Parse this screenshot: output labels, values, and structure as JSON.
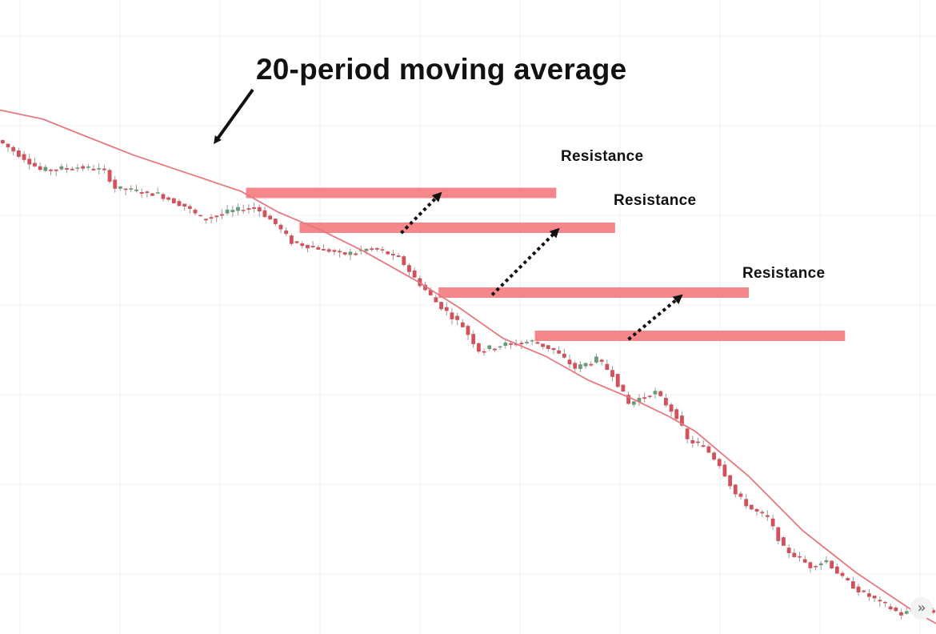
{
  "chart_data": {
    "type": "candlestick",
    "title": "",
    "xlabel": "",
    "ylabel": "",
    "ylim": [
      0,
      100
    ],
    "grid": true,
    "x_count": 175,
    "moving_average": {
      "name": "20-period moving average",
      "color": "#e8787f",
      "points": [
        [
          0,
          87
        ],
        [
          8,
          85.5
        ],
        [
          15,
          83
        ],
        [
          25,
          79.5
        ],
        [
          35,
          76.5
        ],
        [
          45,
          73.5
        ],
        [
          52,
          70
        ],
        [
          60,
          67
        ],
        [
          68,
          63.5
        ],
        [
          78,
          58.5
        ],
        [
          86,
          54
        ],
        [
          94,
          49
        ],
        [
          102,
          46
        ],
        [
          110,
          42
        ],
        [
          118,
          39
        ],
        [
          125,
          36
        ],
        [
          130,
          33.5
        ],
        [
          140,
          26
        ],
        [
          150,
          17
        ],
        [
          160,
          10
        ],
        [
          170,
          4
        ],
        [
          175,
          1.5
        ]
      ]
    },
    "candle_path": [
      [
        0,
        82
      ],
      [
        5,
        79
      ],
      [
        8,
        77
      ],
      [
        15,
        77.5
      ],
      [
        20,
        77
      ],
      [
        22,
        74
      ],
      [
        30,
        73
      ],
      [
        35,
        71
      ],
      [
        38,
        69
      ],
      [
        43,
        70
      ],
      [
        48,
        71
      ],
      [
        52,
        68
      ],
      [
        55,
        65
      ],
      [
        60,
        64
      ],
      [
        65,
        63
      ],
      [
        70,
        64
      ],
      [
        75,
        62.5
      ],
      [
        78,
        59
      ],
      [
        82,
        55
      ],
      [
        87,
        51
      ],
      [
        90,
        47
      ],
      [
        95,
        48
      ],
      [
        100,
        48.5
      ],
      [
        104,
        47
      ],
      [
        108,
        44
      ],
      [
        112,
        45.5
      ],
      [
        115,
        43
      ],
      [
        118,
        38
      ],
      [
        120,
        39
      ],
      [
        123,
        40
      ],
      [
        127,
        36
      ],
      [
        129,
        32
      ],
      [
        132,
        31
      ],
      [
        135,
        28
      ],
      [
        138,
        23
      ],
      [
        141,
        20.5
      ],
      [
        144,
        19
      ],
      [
        147,
        14
      ],
      [
        152,
        11
      ],
      [
        155,
        12
      ],
      [
        158,
        9
      ],
      [
        161,
        7
      ],
      [
        165,
        5
      ],
      [
        169,
        3
      ],
      [
        172,
        4
      ],
      [
        175,
        3.5
      ]
    ],
    "bull_color": "#6a9a77",
    "bear_color": "#d4515c",
    "resistance_color": "#f47c80",
    "resistance_levels": [
      {
        "label": "Resistance",
        "x_start": 46,
        "x_end": 104,
        "y": 73.2
      },
      {
        "label": "Resistance",
        "x_start": 56,
        "x_end": 115,
        "y": 67.4
      },
      {
        "label": "Resistance",
        "x_start": 82,
        "x_end": 140,
        "y": 56.6
      },
      {
        "label": "",
        "x_start": 100,
        "x_end": 158,
        "y": 49.4
      }
    ],
    "breakout_arrows": [
      {
        "x0": 75,
        "y0": 66.5,
        "x1": 82,
        "y1": 72.8
      },
      {
        "x0": 92,
        "y0": 56.2,
        "x1": 104,
        "y1": 66.8
      },
      {
        "x0": 117.5,
        "y0": 48.8,
        "x1": 127,
        "y1": 55.8
      }
    ],
    "annotations": [
      {
        "text": "20-period moving average"
      }
    ]
  },
  "ui": {
    "scroll_button": "»"
  }
}
